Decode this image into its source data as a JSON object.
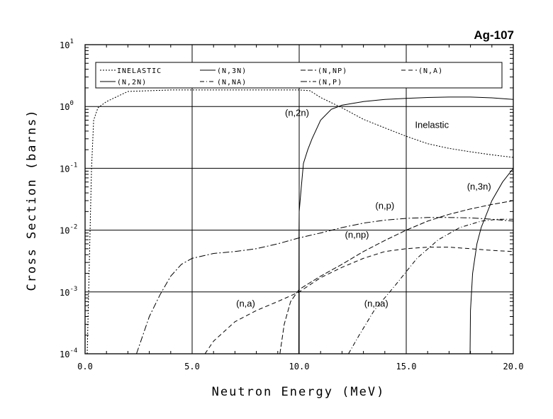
{
  "chart_data": {
    "type": "line",
    "title": "Ag-107",
    "xlabel": "Neutron Energy (MeV)",
    "ylabel": "Cross Section (barns)",
    "xlim": [
      0,
      20
    ],
    "ylim": [
      0.0001,
      10
    ],
    "yscale": "log",
    "grid": true,
    "legend_position": "top",
    "x_ticks": [
      "0.0",
      "5.0",
      "10.0",
      "15.0",
      "20.0"
    ],
    "x_tick_values": [
      0,
      5,
      10,
      15,
      20
    ],
    "y_ticks": [
      {
        "base": "10",
        "exp": "-4"
      },
      {
        "base": "10",
        "exp": "-3"
      },
      {
        "base": "10",
        "exp": "-2"
      },
      {
        "base": "10",
        "exp": "-1"
      },
      {
        "base": "10",
        "exp": "0"
      },
      {
        "base": "10",
        "exp": "1"
      }
    ],
    "y_tick_values": [
      0.0001,
      0.001,
      0.01,
      0.1,
      1,
      10
    ],
    "series": [
      {
        "name": "INELASTIC",
        "dash": "2,2",
        "points": [
          [
            0.1,
            0.0001
          ],
          [
            0.2,
            0.003
          ],
          [
            0.3,
            0.1
          ],
          [
            0.4,
            0.6
          ],
          [
            0.6,
            0.95
          ],
          [
            1.0,
            1.2
          ],
          [
            2.0,
            1.75
          ],
          [
            4.0,
            1.85
          ],
          [
            6.0,
            1.85
          ],
          [
            8.0,
            1.85
          ],
          [
            10.0,
            1.85
          ],
          [
            10.5,
            1.8
          ],
          [
            11.0,
            1.4
          ],
          [
            12.0,
            0.95
          ],
          [
            13.0,
            0.62
          ],
          [
            14.0,
            0.45
          ],
          [
            15.0,
            0.33
          ],
          [
            16.0,
            0.25
          ],
          [
            17.0,
            0.21
          ],
          [
            18.0,
            0.185
          ],
          [
            19.0,
            0.165
          ],
          [
            20.0,
            0.15
          ]
        ]
      },
      {
        "name": "(N,2N)",
        "dash": "",
        "points": [
          [
            9.98,
            0.0001
          ],
          [
            9.99,
            0.008
          ],
          [
            10.0,
            0.02
          ],
          [
            10.1,
            0.05
          ],
          [
            10.2,
            0.12
          ],
          [
            10.4,
            0.2
          ],
          [
            10.6,
            0.3
          ],
          [
            11.0,
            0.6
          ],
          [
            11.5,
            0.9
          ],
          [
            12.0,
            1.05
          ],
          [
            13.0,
            1.2
          ],
          [
            14.0,
            1.3
          ],
          [
            15.0,
            1.35
          ],
          [
            16.0,
            1.4
          ],
          [
            17.0,
            1.42
          ],
          [
            18.0,
            1.42
          ],
          [
            19.0,
            1.38
          ],
          [
            20.0,
            1.3
          ]
        ]
      },
      {
        "name": "(N,3N)",
        "dash": "",
        "points": [
          [
            17.98,
            0.0001
          ],
          [
            18.0,
            0.0005
          ],
          [
            18.1,
            0.002
          ],
          [
            18.3,
            0.006
          ],
          [
            18.5,
            0.011
          ],
          [
            19.0,
            0.03
          ],
          [
            19.5,
            0.06
          ],
          [
            20.0,
            0.1
          ]
        ]
      },
      {
        "name": "(N,NA)",
        "dash": "6,3,1,3",
        "points": [
          [
            12.3,
            0.0001
          ],
          [
            12.8,
            0.0002
          ],
          [
            13.5,
            0.0005
          ],
          [
            14.5,
            0.0013
          ],
          [
            15.5,
            0.0035
          ],
          [
            16.5,
            0.007
          ],
          [
            17.5,
            0.011
          ],
          [
            18.5,
            0.014
          ],
          [
            19.3,
            0.015
          ],
          [
            20.0,
            0.015
          ]
        ]
      },
      {
        "name": "(N,NP)",
        "dash": "7,3",
        "points": [
          [
            9.1,
            0.0001
          ],
          [
            9.3,
            0.0003
          ],
          [
            9.6,
            0.0007
          ],
          [
            10.0,
            0.0011
          ],
          [
            11.0,
            0.0018
          ],
          [
            12.0,
            0.0028
          ],
          [
            13.0,
            0.0045
          ],
          [
            14.0,
            0.0068
          ],
          [
            15.0,
            0.01
          ],
          [
            16.0,
            0.014
          ],
          [
            17.0,
            0.018
          ],
          [
            18.0,
            0.022
          ],
          [
            19.0,
            0.026
          ],
          [
            20.0,
            0.03
          ]
        ]
      },
      {
        "name": "(N,P)",
        "dash": "9,3,2,3",
        "points": [
          [
            2.4,
            0.0001
          ],
          [
            3.0,
            0.0004
          ],
          [
            3.5,
            0.0009
          ],
          [
            4.0,
            0.0018
          ],
          [
            4.5,
            0.0028
          ],
          [
            5.0,
            0.0035
          ],
          [
            6.0,
            0.0042
          ],
          [
            7.0,
            0.0045
          ],
          [
            8.0,
            0.005
          ],
          [
            9.0,
            0.006
          ],
          [
            10.0,
            0.0075
          ],
          [
            11.0,
            0.009
          ],
          [
            12.0,
            0.011
          ],
          [
            13.0,
            0.013
          ],
          [
            14.0,
            0.0145
          ],
          [
            15.0,
            0.0155
          ],
          [
            16.0,
            0.016
          ],
          [
            17.0,
            0.016
          ],
          [
            18.0,
            0.0158
          ],
          [
            19.0,
            0.015
          ],
          [
            20.0,
            0.014
          ]
        ]
      },
      {
        "name": "(N,A)",
        "dash": "6,4",
        "points": [
          [
            5.6,
            0.0001
          ],
          [
            6.0,
            0.00016
          ],
          [
            7.0,
            0.00033
          ],
          [
            8.0,
            0.0005
          ],
          [
            9.0,
            0.0007
          ],
          [
            10.0,
            0.001
          ],
          [
            11.0,
            0.0017
          ],
          [
            12.0,
            0.0025
          ],
          [
            13.0,
            0.0035
          ],
          [
            14.0,
            0.0045
          ],
          [
            15.0,
            0.005
          ],
          [
            16.0,
            0.0053
          ],
          [
            17.0,
            0.0053
          ],
          [
            18.0,
            0.005
          ],
          [
            19.0,
            0.0047
          ],
          [
            20.0,
            0.0045
          ]
        ]
      }
    ],
    "legend_rows": [
      [
        "INELASTIC",
        "(N,3N)",
        "(N,NP)",
        "(N,A)"
      ],
      [
        "(N,2N)",
        "(N,NA)",
        "(N,P)"
      ]
    ],
    "annotations": [
      {
        "text": "(n,2n)",
        "x": 9.9,
        "y": 0.7
      },
      {
        "text": "Inelastic",
        "x": 16.2,
        "y": 0.45
      },
      {
        "text": "(n,3n)",
        "x": 18.4,
        "y": 0.045
      },
      {
        "text": "(n,p)",
        "x": 14.0,
        "y": 0.022
      },
      {
        "text": "(n,np)",
        "x": 12.7,
        "y": 0.0075
      },
      {
        "text": "(n,a)",
        "x": 7.5,
        "y": 0.00058
      },
      {
        "text": "(n,na)",
        "x": 13.6,
        "y": 0.00058
      }
    ]
  }
}
